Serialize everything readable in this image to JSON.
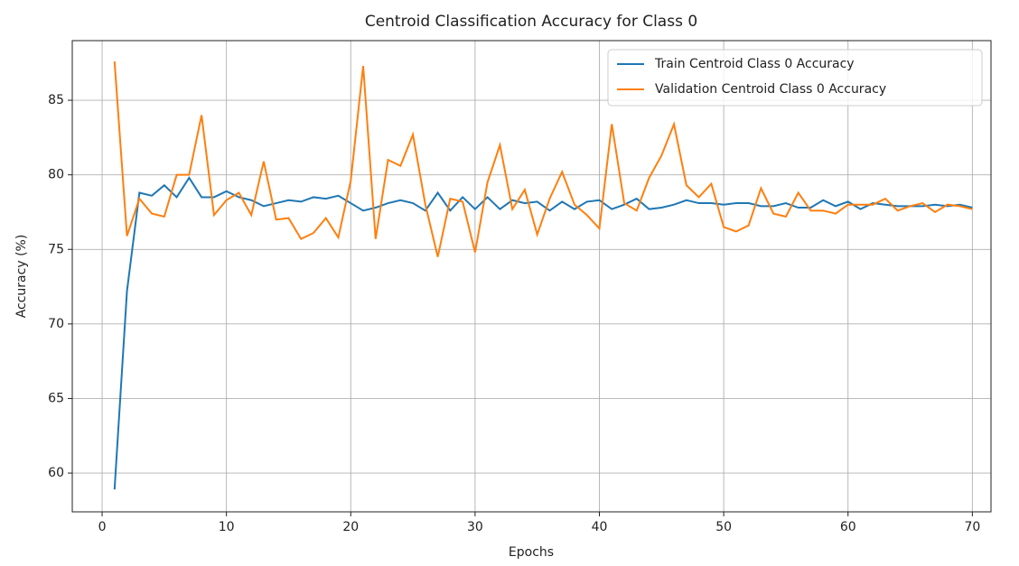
{
  "chart_data": {
    "type": "line",
    "title": "Centroid Classification Accuracy for Class 0",
    "xlabel": "Epochs",
    "ylabel": "Accuracy (%)",
    "x": [
      1,
      2,
      3,
      4,
      5,
      6,
      7,
      8,
      9,
      10,
      11,
      12,
      13,
      14,
      15,
      16,
      17,
      18,
      19,
      20,
      21,
      22,
      23,
      24,
      25,
      26,
      27,
      28,
      29,
      30,
      31,
      32,
      33,
      34,
      35,
      36,
      37,
      38,
      39,
      40,
      41,
      42,
      43,
      44,
      45,
      46,
      47,
      48,
      49,
      50,
      51,
      52,
      53,
      54,
      55,
      56,
      57,
      58,
      59,
      60,
      61,
      62,
      63,
      64,
      65,
      66,
      67,
      68,
      69,
      70
    ],
    "series": [
      {
        "name": "Train Centroid Class 0 Accuracy",
        "color": "#1f77b4",
        "values": [
          58.9,
          72.2,
          78.8,
          78.6,
          79.3,
          78.5,
          79.8,
          78.5,
          78.5,
          78.9,
          78.5,
          78.3,
          77.9,
          78.1,
          78.3,
          78.2,
          78.5,
          78.4,
          78.6,
          78.1,
          77.6,
          77.8,
          78.1,
          78.3,
          78.1,
          77.6,
          78.8,
          77.6,
          78.5,
          77.7,
          78.5,
          77.7,
          78.3,
          78.1,
          78.2,
          77.6,
          78.2,
          77.7,
          78.2,
          78.3,
          77.7,
          78.0,
          78.4,
          77.7,
          77.8,
          78.0,
          78.3,
          78.1,
          78.1,
          78.0,
          78.1,
          78.1,
          77.9,
          77.9,
          78.1,
          77.8,
          77.8,
          78.3,
          77.9,
          78.2,
          77.7,
          78.1,
          78.0,
          77.9,
          77.9,
          77.9,
          78.0,
          77.9,
          78.0,
          77.8
        ]
      },
      {
        "name": "Validation Centroid Class 0 Accuracy",
        "color": "#ff7f0e",
        "values": [
          87.6,
          75.9,
          78.4,
          77.4,
          77.2,
          80.0,
          80.0,
          84.0,
          77.3,
          78.3,
          78.8,
          77.3,
          80.9,
          77.0,
          77.1,
          75.7,
          76.1,
          77.1,
          75.8,
          79.6,
          87.3,
          75.7,
          81.0,
          80.6,
          82.7,
          78.0,
          74.5,
          78.4,
          78.2,
          74.8,
          79.5,
          82.0,
          77.7,
          79.0,
          76.0,
          78.4,
          80.2,
          78.0,
          77.3,
          76.4,
          83.4,
          78.1,
          77.6,
          79.8,
          81.3,
          83.4,
          79.3,
          78.5,
          79.4,
          76.5,
          76.2,
          76.6,
          79.1,
          77.4,
          77.2,
          78.8,
          77.6,
          77.6,
          77.4,
          78.0,
          78.0,
          78.0,
          78.4,
          77.6,
          77.9,
          78.1,
          77.5,
          78.0,
          77.9,
          77.7
        ]
      }
    ],
    "xlim": [
      -2.4,
      71.5
    ],
    "ylim": [
      57.4,
      89.0
    ],
    "xticks": [
      0,
      10,
      20,
      30,
      40,
      50,
      60,
      70
    ],
    "yticks": [
      60,
      65,
      70,
      75,
      80,
      85
    ],
    "grid": true,
    "legend": "upper right"
  }
}
